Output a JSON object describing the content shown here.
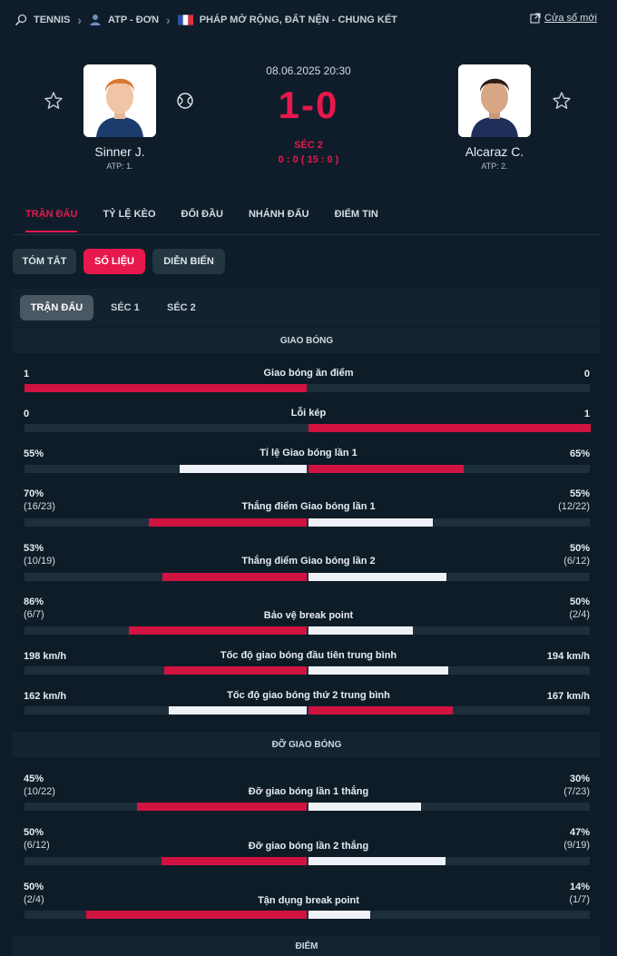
{
  "breadcrumb": {
    "sport": "TENNIS",
    "category": "ATP - ĐƠN",
    "tournament": "PHÁP MỞ RỘNG, ĐẤT NỆN - CHUNG KẾT",
    "new_window": "Cửa sổ mới"
  },
  "match": {
    "datetime": "08.06.2025 20:30",
    "score": "1-0",
    "set_label": "SÉC 2",
    "game_score": "0 : 0 ( 15 : 0 )",
    "home": {
      "name": "Sinner J.",
      "rank": "ATP: 1."
    },
    "away": {
      "name": "Alcaraz C.",
      "rank": "ATP: 2."
    }
  },
  "tabs": [
    "TRẬN ĐẤU",
    "TỶ LỆ KÈO",
    "ĐỐI ĐẦU",
    "NHÁNH ĐẤU",
    "ĐIỂM TIN"
  ],
  "pills": [
    "TÓM TẮT",
    "SỐ LIỆU",
    "DIỄN BIẾN"
  ],
  "subtabs": [
    "TRẬN ĐẤU",
    "SÉC 1",
    "SÉC 2"
  ],
  "sections": {
    "serve": "GIAO BÓNG",
    "return": "ĐỠ GIAO BÓNG",
    "points": "ĐIỂM"
  },
  "colors": {
    "accent": "#e8174c",
    "background": "#0f1d2a"
  },
  "stats": [
    {
      "label": "Giao bóng ăn điểm",
      "home": "1",
      "away": "0",
      "home_frac": 1.0,
      "away_frac": 0.0,
      "home_color": "red",
      "away_color": "red"
    },
    {
      "label": "Lỗi kép",
      "home": "0",
      "away": "1",
      "home_frac": 0.0,
      "away_frac": 1.0,
      "home_color": "red",
      "away_color": "red"
    },
    {
      "label": "Tỉ lệ Giao bóng lần 1",
      "home": "55%",
      "away": "65%",
      "home_frac": 0.45,
      "away_frac": 0.55,
      "home_color": "white",
      "away_color": "red"
    },
    {
      "label": "Thắng điểm Giao bóng lần 1",
      "home": "70%",
      "home_sub": "(16/23)",
      "away": "55%",
      "away_sub": "(12/22)",
      "home_frac": 0.56,
      "away_frac": 0.44,
      "home_color": "red",
      "away_color": "white"
    },
    {
      "label": "Thắng điểm Giao bóng lần 2",
      "home": "53%",
      "home_sub": "(10/19)",
      "away": "50%",
      "away_sub": "(6/12)",
      "home_frac": 0.51,
      "away_frac": 0.49,
      "home_color": "red",
      "away_color": "white"
    },
    {
      "label": "Bảo vệ break point",
      "home": "86%",
      "home_sub": "(6/7)",
      "away": "50%",
      "away_sub": "(2/4)",
      "home_frac": 0.63,
      "away_frac": 0.37,
      "home_color": "red",
      "away_color": "white"
    },
    {
      "label": "Tốc độ giao bóng đầu tiên trung bình",
      "home": "198 km/h",
      "away": "194 km/h",
      "home_frac": 0.505,
      "away_frac": 0.495,
      "home_color": "red",
      "away_color": "white"
    },
    {
      "label": "Tốc độ giao bóng thứ 2 trung bình",
      "home": "162 km/h",
      "away": "167 km/h",
      "home_frac": 0.49,
      "away_frac": 0.51,
      "home_color": "white",
      "away_color": "red"
    },
    {
      "label": "Đỡ giao bóng lần 1 thắng",
      "home": "45%",
      "home_sub": "(10/22)",
      "away": "30%",
      "away_sub": "(7/23)",
      "home_frac": 0.6,
      "away_frac": 0.4,
      "home_color": "red",
      "away_color": "white"
    },
    {
      "label": "Đỡ giao bóng lần 2 thắng",
      "home": "50%",
      "home_sub": "(6/12)",
      "away": "47%",
      "away_sub": "(9/19)",
      "home_frac": 0.515,
      "away_frac": 0.485,
      "home_color": "red",
      "away_color": "white"
    },
    {
      "label": "Tận dụng break point",
      "home": "50%",
      "home_sub": "(2/4)",
      "away": "14%",
      "away_sub": "(1/7)",
      "home_frac": 0.78,
      "away_frac": 0.22,
      "home_color": "red",
      "away_color": "white"
    }
  ]
}
